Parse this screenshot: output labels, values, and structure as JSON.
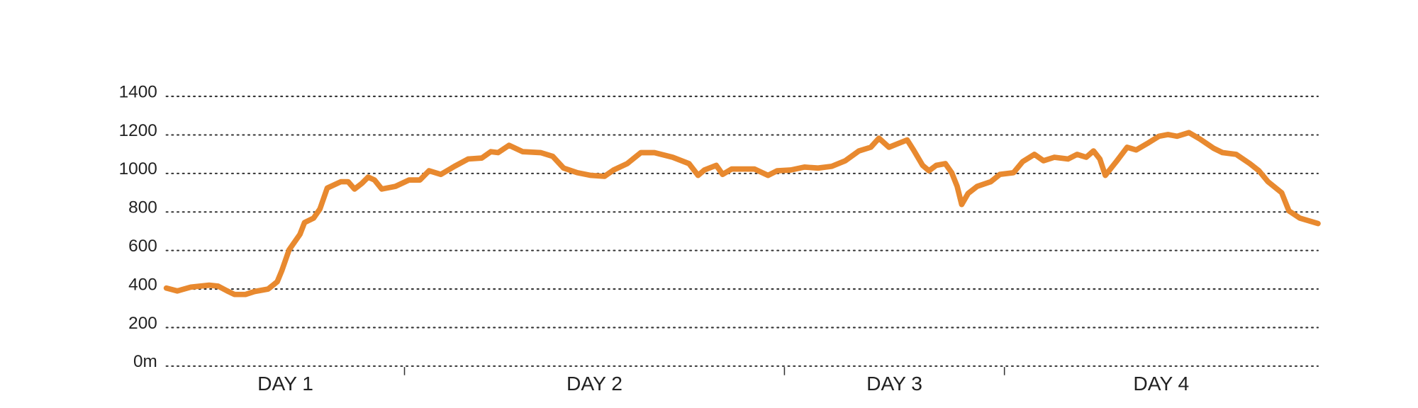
{
  "chart_data": {
    "type": "line",
    "x": [
      0,
      12,
      27,
      47,
      57,
      67,
      75,
      87,
      97,
      112,
      122,
      127,
      135,
      147,
      152,
      162,
      169,
      177,
      192,
      200,
      207,
      215,
      222,
      229,
      237,
      252,
      267,
      279,
      289,
      302,
      317,
      332,
      347,
      357,
      365,
      377,
      392,
      412,
      425,
      437,
      452,
      467,
      482,
      492,
      507,
      522,
      537,
      557,
      575,
      585,
      592,
      605,
      612,
      622,
      637,
      647,
      662,
      672,
      687,
      702,
      717,
      732,
      747,
      762,
      775,
      784,
      795,
      805,
      815,
      822,
      832,
      839,
      847,
      857,
      864,
      870,
      875,
      882,
      892,
      907,
      917,
      932,
      942,
      955,
      965,
      977,
      992,
      1002,
      1012,
      1020,
      1027,
      1033,
      1045,
      1057,
      1067,
      1079,
      1092,
      1102,
      1112,
      1125,
      1137,
      1152,
      1162,
      1177,
      1192,
      1202,
      1212,
      1227,
      1235,
      1247,
      1267
    ],
    "values": [
      405,
      390,
      410,
      420,
      415,
      390,
      372,
      372,
      387,
      400,
      438,
      495,
      603,
      684,
      745,
      768,
      816,
      924,
      957,
      957,
      919,
      948,
      981,
      966,
      919,
      933,
      966,
      966,
      1014,
      995,
      1037,
      1075,
      1080,
      1113,
      1108,
      1146,
      1113,
      1108,
      1089,
      1028,
      1004,
      990,
      985,
      1018,
      1051,
      1108,
      1108,
      1084,
      1051,
      990,
      1018,
      1042,
      995,
      1023,
      1023,
      1023,
      990,
      1014,
      1018,
      1033,
      1028,
      1037,
      1066,
      1117,
      1136,
      1183,
      1136,
      1155,
      1174,
      1122,
      1042,
      1014,
      1042,
      1051,
      1004,
      933,
      839,
      896,
      933,
      957,
      995,
      1004,
      1061,
      1099,
      1066,
      1084,
      1075,
      1099,
      1084,
      1117,
      1075,
      990,
      1061,
      1136,
      1122,
      1155,
      1193,
      1202,
      1193,
      1212,
      1179,
      1131,
      1108,
      1099,
      1051,
      1014,
      957,
      900,
      806,
      768,
      740
    ],
    "color": "#e8892f",
    "xlim": [
      0,
      1267
    ],
    "ylim": [
      0,
      1400
    ],
    "yticks": [
      {
        "value": 0,
        "label": "0m"
      },
      200,
      400,
      600,
      800,
      1000,
      1200,
      1400
    ],
    "grid": true,
    "days": [
      {
        "label": "DAY 1",
        "start": 0,
        "end": 262
      },
      {
        "label": "DAY 2",
        "start": 262,
        "end": 680
      },
      {
        "label": "DAY 3",
        "start": 680,
        "end": 922
      },
      {
        "label": "DAY 4",
        "start": 922,
        "end": 1267
      }
    ]
  }
}
